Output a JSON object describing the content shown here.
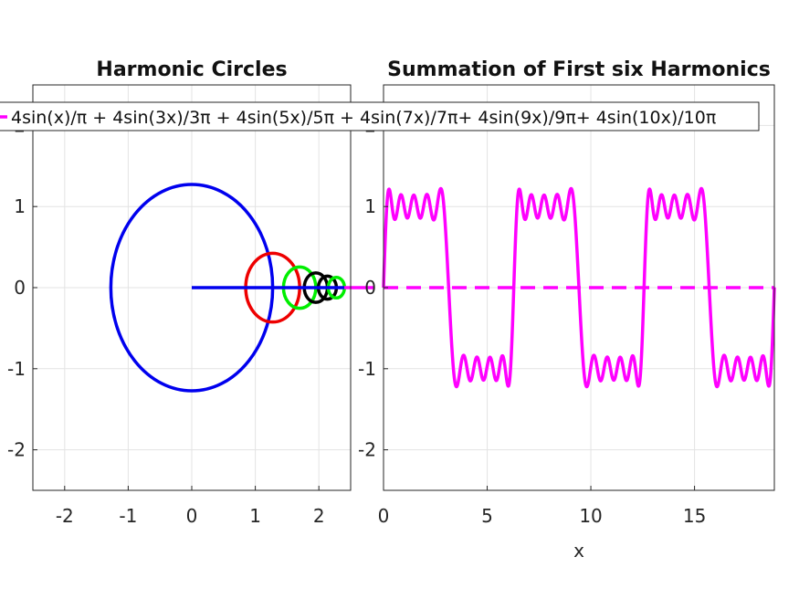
{
  "chart_data": [
    {
      "type": "line",
      "title": "Harmonic Circles",
      "xlim": [
        -2.5,
        2.5
      ],
      "ylim": [
        -2.5,
        2.5
      ],
      "x_ticks": [
        -2,
        -1,
        0,
        1,
        2
      ],
      "y_ticks": [
        -2,
        -1,
        0,
        1,
        2
      ],
      "grid": true,
      "circles": [
        {
          "center": [
            0,
            0
          ],
          "radius": 1.2732,
          "color": "#0000ee"
        },
        {
          "center": [
            1.2732,
            0
          ],
          "radius": 0.4244,
          "color": "#ee0000"
        },
        {
          "center": [
            1.6976,
            0
          ],
          "radius": 0.2546,
          "color": "#00ee00"
        },
        {
          "center": [
            1.9523,
            0
          ],
          "radius": 0.1819,
          "color": "#000000"
        },
        {
          "center": [
            2.1342,
            0
          ],
          "radius": 0.1415,
          "color": "#000000"
        },
        {
          "center": [
            2.2756,
            0
          ],
          "radius": 0.1273,
          "color": "#00ee00"
        }
      ],
      "radius_line": {
        "x": [
          0,
          2.4
        ],
        "y": [
          0,
          0
        ],
        "color": "#0000ee"
      },
      "projection_line": {
        "x": [
          2.4,
          2.5
        ],
        "y": [
          0,
          0
        ],
        "color": "#ff00ff"
      }
    },
    {
      "type": "line",
      "title": "Summation of First six Harmonics",
      "xlabel": "x",
      "ylabel": "",
      "xlim": [
        0,
        18.85
      ],
      "ylim": [
        -2.5,
        2.5
      ],
      "x_ticks": [
        0,
        5,
        10,
        15
      ],
      "y_ticks": [
        -2,
        -1,
        0,
        1,
        2
      ],
      "grid": true,
      "series": [
        {
          "name": "4sin(x)/π + 4sin(3x)/3π + 4sin(5x)/5π + 4sin(7x)/7π+ 4sin(9x)/9π+ 4sin(10x)/10π",
          "color": "#ff00ff",
          "function": "sum of 4*sin(n*x)/(n*pi) for n in [1,3,5,7,9,10]",
          "x_range": [
            0,
            18.85
          ]
        }
      ],
      "reference_line": {
        "y": 0,
        "style": "dashed",
        "color": "#ff00ff"
      },
      "legend": {
        "placement": "top"
      }
    }
  ]
}
